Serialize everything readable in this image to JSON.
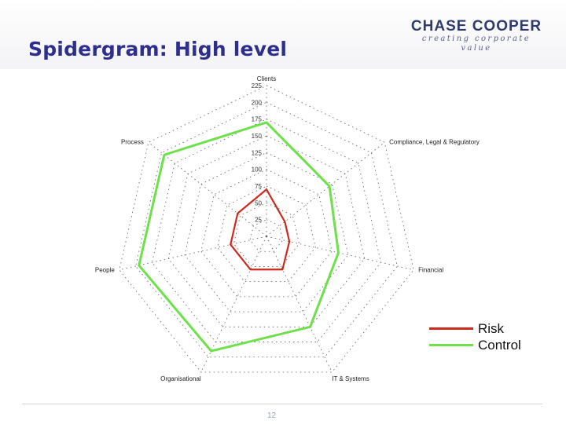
{
  "header": {
    "title": "Spidergram: High level",
    "logo": {
      "name": "CHASE COOPER",
      "tagline": "creating corporate value"
    }
  },
  "colors": {
    "risk": "#cc2a1e",
    "control": "#6ee04a",
    "title": "#2e2e8c",
    "grid": "#5a5a5a"
  },
  "chart_data": {
    "type": "radar",
    "categories": [
      "Clients",
      "Compliance, Legal & Regulatory",
      "Financial",
      "IT & Systems",
      "Organisational",
      "People",
      "Process"
    ],
    "axis_ticks": [
      "25",
      "50",
      "75",
      "100",
      "125",
      "150",
      "175",
      "200",
      "225"
    ],
    "rmax": 225,
    "series": [
      {
        "name": "Risk",
        "color": "#cc2a1e",
        "values": [
          70,
          35,
          35,
          55,
          55,
          55,
          55
        ]
      },
      {
        "name": "Control",
        "color": "#6ee04a",
        "values": [
          170,
          120,
          110,
          150,
          190,
          195,
          195
        ]
      }
    ],
    "legend": "bottom-right"
  },
  "footer": {
    "page": "12"
  }
}
